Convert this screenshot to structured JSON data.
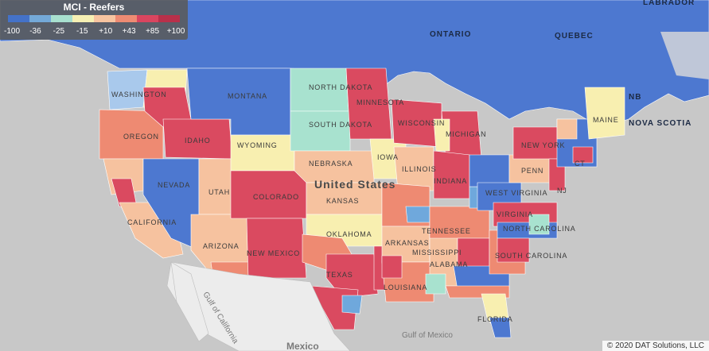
{
  "legend": {
    "title": "MCI - Reefers",
    "ticks": [
      "-100",
      "-36",
      "-25",
      "-15",
      "+10",
      "+43",
      "+85",
      "+100"
    ],
    "colors": [
      "#4472c8",
      "#74a9d8",
      "#a8e0cf",
      "#f6f0b4",
      "#f7c4a0",
      "#ee8b73",
      "#d9455f",
      "#b8304a"
    ]
  },
  "palette": {
    "deep_blue": "#4d78d0",
    "light_blue": "#6fa8dc",
    "mint": "#a8e2cf",
    "cream": "#f8efb0",
    "peach": "#f6c29f",
    "salmon": "#ee8a72",
    "red": "#da4a60",
    "crimson": "#c23650",
    "land_gray": "#e6e6e6",
    "water": "#c8c8c8"
  },
  "map_labels": {
    "ontario": "ONTARIO",
    "quebec": "QUEBEC",
    "labrador": "LABRADOR",
    "nb": "NB",
    "nova_scotia": "NOVA SCOTIA",
    "washington": "WASHINGTON",
    "oregon": "OREGON",
    "california": "CALIFORNIA",
    "idaho": "IDAHO",
    "nevada": "NEVADA",
    "utah": "UTAH",
    "arizona": "ARIZONA",
    "montana": "MONTANA",
    "wyoming": "WYOMING",
    "colorado": "COLORADO",
    "new_mexico": "NEW MEXICO",
    "north_dakota": "NORTH DAKOTA",
    "south_dakota": "SOUTH DAKOTA",
    "nebraska": "NEBRASKA",
    "kansas": "KANSAS",
    "oklahoma": "OKLAHOMA",
    "texas": "TEXAS",
    "minnesota": "MINNESOTA",
    "iowa": "IOWA",
    "wisconsin": "WISCONSIN",
    "michigan": "MICHIGAN",
    "illinois": "ILLINOIS",
    "indiana": "INDIANA",
    "arkansas": "ARKANSAS",
    "louisiana": "LOUISIANA",
    "mississippi": "MISSISSIPPI",
    "alabama": "ALABAMA",
    "tennessee": "TENNESSEE",
    "virginia": "VIRGINIA",
    "west_virginia": "WEST VIRGINIA",
    "north_carolina": "NORTH CAROLINA",
    "south_carolina": "SOUTH CAROLINA",
    "florida": "FLORIDA",
    "penn": "PENN",
    "new_york": "NEW YORK",
    "maine": "MAINE",
    "nj": "NJ",
    "ct": "CT",
    "united_states": "United States",
    "gulf_mexico": "Gulf of Mexico",
    "gulf_california": "Gulf of California",
    "mexico": "Mexico"
  },
  "footer": {
    "copyright": "© 2020 DAT Solutions, LLC"
  }
}
